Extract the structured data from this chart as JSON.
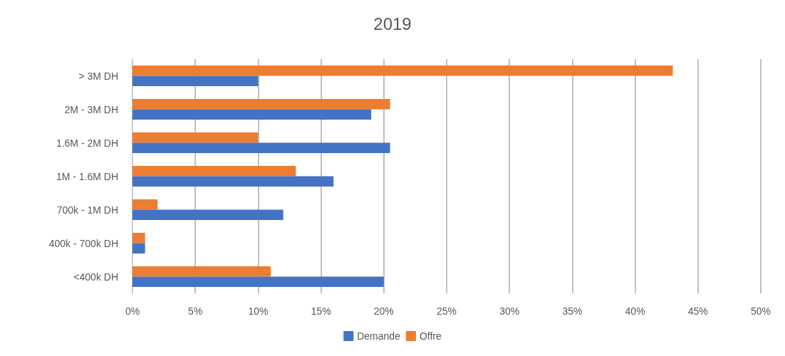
{
  "chart_data": {
    "type": "bar",
    "title": "2019",
    "orientation": "horizontal",
    "categories": [
      "> 3M DH",
      "2M - 3M DH",
      "1.6M - 2M DH",
      "1M - 1.6M DH",
      "700k - 1M DH",
      "400k - 700k DH",
      "<400k DH"
    ],
    "series": [
      {
        "name": "Demande",
        "color": "#4472c4",
        "values": [
          10,
          19,
          20.5,
          16,
          12,
          1,
          20
        ]
      },
      {
        "name": "Offre",
        "color": "#ed7d31",
        "values": [
          43,
          20.5,
          10,
          13,
          2,
          1,
          11
        ]
      }
    ],
    "xlim": [
      0,
      50
    ],
    "xticks": [
      {
        "value": 0,
        "label": "0%"
      },
      {
        "value": 5,
        "label": "5%"
      },
      {
        "value": 10,
        "label": "10%"
      },
      {
        "value": 15,
        "label": "15%"
      },
      {
        "value": 20,
        "label": "20%"
      },
      {
        "value": 25,
        "label": "25%"
      },
      {
        "value": 30,
        "label": "30%"
      },
      {
        "value": 35,
        "label": "35%"
      },
      {
        "value": 40,
        "label": "40%"
      },
      {
        "value": 45,
        "label": "45%"
      },
      {
        "value": 50,
        "label": "50%"
      }
    ],
    "grid": "x",
    "legend": "bottom"
  }
}
